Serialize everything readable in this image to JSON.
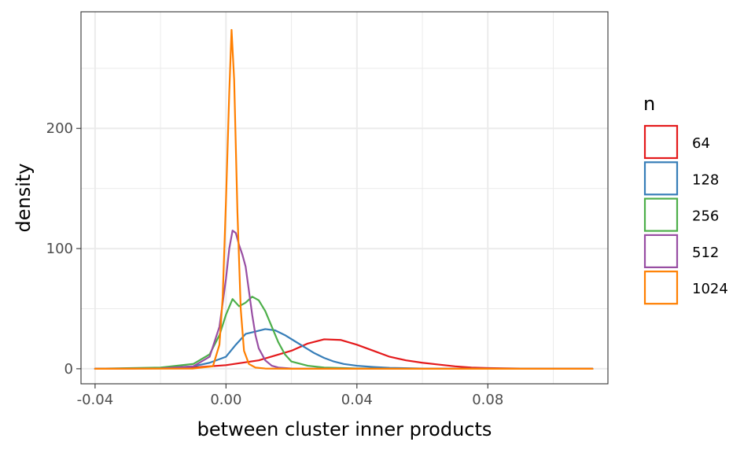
{
  "chart_data": {
    "type": "line",
    "chart_kind": "density",
    "xlabel": "between cluster inner products",
    "ylabel": "density",
    "xlim": [
      -0.0443,
      0.1167
    ],
    "ylim": [
      -12.5,
      297
    ],
    "x_ticks": [
      -0.04,
      0.0,
      0.04,
      0.08
    ],
    "x_tick_labels": [
      "-0.04",
      "0.00",
      "0.04",
      "0.08"
    ],
    "y_ticks": [
      0,
      100,
      200
    ],
    "y_tick_labels": [
      "0",
      "100",
      "200"
    ],
    "grid": true,
    "legend": {
      "title": "n",
      "position": "right"
    },
    "series": [
      {
        "name": "64",
        "color": "#e41a1c",
        "points": [
          [
            -0.04,
            0
          ],
          [
            -0.02,
            0.5
          ],
          [
            -0.01,
            1
          ],
          [
            0,
            3
          ],
          [
            0.01,
            7
          ],
          [
            0.015,
            11
          ],
          [
            0.02,
            15
          ],
          [
            0.025,
            21
          ],
          [
            0.03,
            24.5
          ],
          [
            0.035,
            24
          ],
          [
            0.04,
            20
          ],
          [
            0.045,
            15
          ],
          [
            0.05,
            10
          ],
          [
            0.055,
            7
          ],
          [
            0.06,
            5
          ],
          [
            0.065,
            3.5
          ],
          [
            0.07,
            2
          ],
          [
            0.075,
            1
          ],
          [
            0.08,
            0.6
          ],
          [
            0.09,
            0.2
          ],
          [
            0.1,
            0.05
          ],
          [
            0.112,
            0
          ]
        ]
      },
      {
        "name": "128",
        "color": "#377eb8",
        "points": [
          [
            -0.04,
            0
          ],
          [
            -0.02,
            0.5
          ],
          [
            -0.01,
            2
          ],
          [
            -0.005,
            5
          ],
          [
            0,
            10
          ],
          [
            0.003,
            20
          ],
          [
            0.006,
            29
          ],
          [
            0.009,
            31
          ],
          [
            0.012,
            33
          ],
          [
            0.015,
            32
          ],
          [
            0.018,
            28
          ],
          [
            0.021,
            23
          ],
          [
            0.024,
            18
          ],
          [
            0.027,
            13
          ],
          [
            0.03,
            9
          ],
          [
            0.033,
            6
          ],
          [
            0.036,
            4
          ],
          [
            0.04,
            2.5
          ],
          [
            0.045,
            1.5
          ],
          [
            0.05,
            0.8
          ],
          [
            0.06,
            0.2
          ],
          [
            0.08,
            0.05
          ],
          [
            0.112,
            0
          ]
        ]
      },
      {
        "name": "256",
        "color": "#4daf4a",
        "points": [
          [
            -0.04,
            0
          ],
          [
            -0.02,
            1
          ],
          [
            -0.01,
            4
          ],
          [
            -0.005,
            12
          ],
          [
            -0.002,
            28
          ],
          [
            0,
            45
          ],
          [
            0.002,
            58
          ],
          [
            0.004,
            52
          ],
          [
            0.006,
            55
          ],
          [
            0.008,
            60
          ],
          [
            0.01,
            57
          ],
          [
            0.012,
            48
          ],
          [
            0.014,
            35
          ],
          [
            0.016,
            22
          ],
          [
            0.018,
            12
          ],
          [
            0.02,
            6
          ],
          [
            0.025,
            2.5
          ],
          [
            0.03,
            1
          ],
          [
            0.04,
            0.3
          ],
          [
            0.06,
            0
          ],
          [
            0.112,
            0
          ]
        ]
      },
      {
        "name": "512",
        "color": "#984ea3",
        "points": [
          [
            -0.04,
            0
          ],
          [
            -0.02,
            0.3
          ],
          [
            -0.01,
            2
          ],
          [
            -0.005,
            10
          ],
          [
            -0.002,
            35
          ],
          [
            0,
            75
          ],
          [
            0.001,
            100
          ],
          [
            0.002,
            115
          ],
          [
            0.003,
            113
          ],
          [
            0.004,
            103
          ],
          [
            0.005,
            95
          ],
          [
            0.006,
            85
          ],
          [
            0.007,
            65
          ],
          [
            0.008,
            45
          ],
          [
            0.009,
            28
          ],
          [
            0.01,
            17
          ],
          [
            0.012,
            7
          ],
          [
            0.014,
            2.5
          ],
          [
            0.016,
            1
          ],
          [
            0.02,
            0.2
          ],
          [
            0.03,
            0
          ],
          [
            0.112,
            0
          ]
        ]
      },
      {
        "name": "1024",
        "color": "#ff7f00",
        "points": [
          [
            -0.04,
            0
          ],
          [
            -0.01,
            0.2
          ],
          [
            -0.004,
            2
          ],
          [
            -0.002,
            20
          ],
          [
            -0.001,
            60
          ],
          [
            0,
            140
          ],
          [
            0.001,
            230
          ],
          [
            0.0017,
            282
          ],
          [
            0.0025,
            240
          ],
          [
            0.0035,
            130
          ],
          [
            0.0045,
            50
          ],
          [
            0.0055,
            15
          ],
          [
            0.007,
            4
          ],
          [
            0.009,
            1
          ],
          [
            0.012,
            0.2
          ],
          [
            0.02,
            0
          ],
          [
            0.112,
            0
          ]
        ]
      }
    ]
  }
}
